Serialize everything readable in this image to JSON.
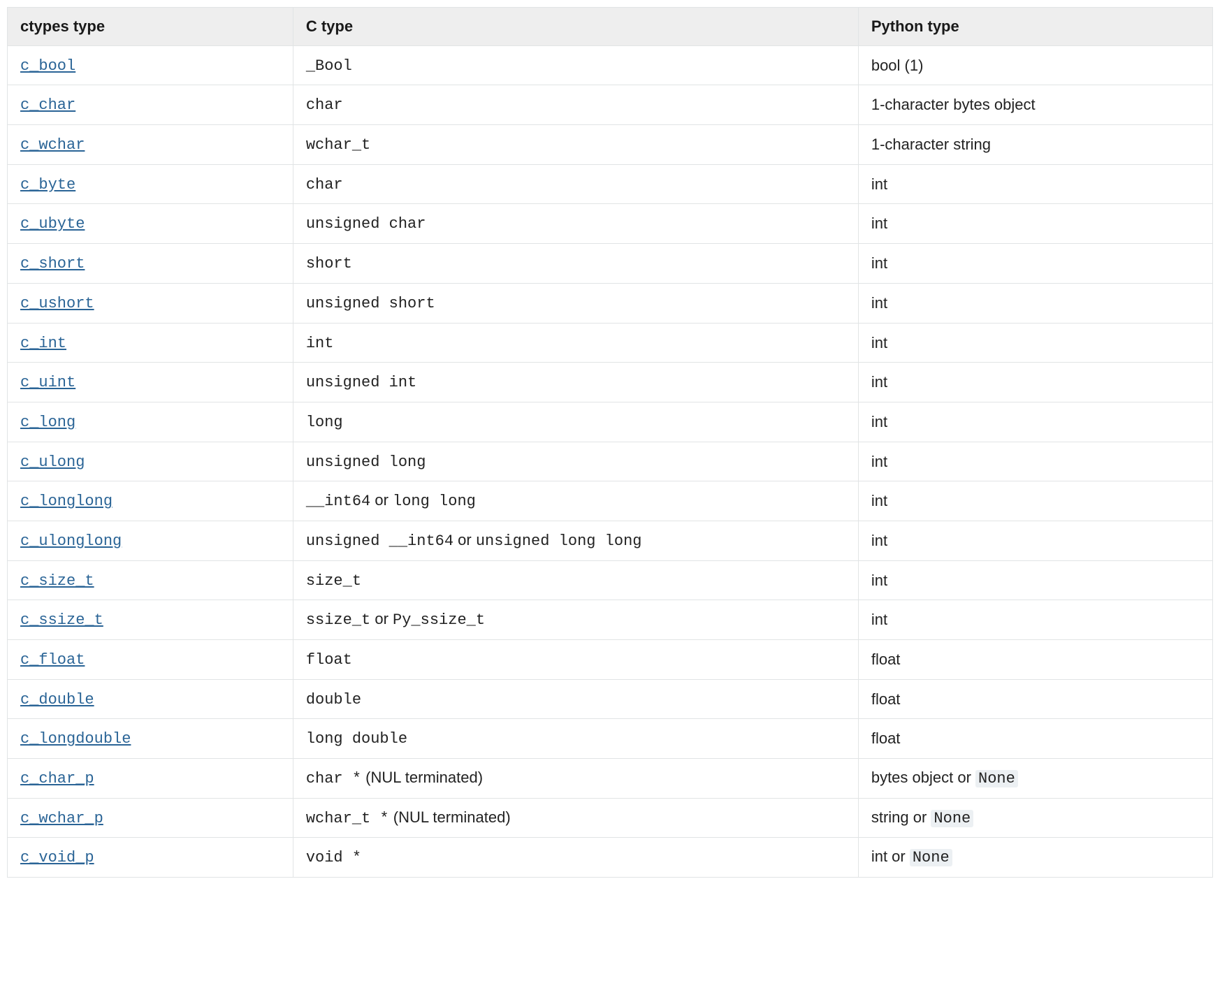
{
  "table": {
    "type": "table",
    "columns": [
      "ctypes type",
      "C type",
      "Python type"
    ],
    "column_widths_pct": [
      23.7,
      46.9,
      29.4
    ],
    "header_bg": "#eeeeee",
    "border_color": "#e1e4e5",
    "link_color": "#2a6496",
    "text_color": "#222222",
    "code_bg": "#ecf0f3",
    "mono_font": "Menlo, Monaco, Consolas, Courier New, monospace",
    "sans_font": "Lucida Grande, Helvetica Neue, Arial, sans-serif",
    "font_size_pt": 16,
    "rows": [
      {
        "ctypes": "c_bool",
        "c": [
          {
            "t": "code",
            "v": "_Bool"
          }
        ],
        "py": [
          {
            "t": "plain",
            "v": "bool (1)"
          }
        ]
      },
      {
        "ctypes": "c_char",
        "c": [
          {
            "t": "code",
            "v": "char"
          }
        ],
        "py": [
          {
            "t": "plain",
            "v": "1-character bytes object"
          }
        ]
      },
      {
        "ctypes": "c_wchar",
        "c": [
          {
            "t": "code",
            "v": "wchar_t"
          }
        ],
        "py": [
          {
            "t": "plain",
            "v": "1-character string"
          }
        ]
      },
      {
        "ctypes": "c_byte",
        "c": [
          {
            "t": "code",
            "v": "char"
          }
        ],
        "py": [
          {
            "t": "plain",
            "v": "int"
          }
        ]
      },
      {
        "ctypes": "c_ubyte",
        "c": [
          {
            "t": "code",
            "v": "unsigned char"
          }
        ],
        "py": [
          {
            "t": "plain",
            "v": "int"
          }
        ]
      },
      {
        "ctypes": "c_short",
        "c": [
          {
            "t": "code",
            "v": "short"
          }
        ],
        "py": [
          {
            "t": "plain",
            "v": "int"
          }
        ]
      },
      {
        "ctypes": "c_ushort",
        "c": [
          {
            "t": "code",
            "v": "unsigned short"
          }
        ],
        "py": [
          {
            "t": "plain",
            "v": "int"
          }
        ]
      },
      {
        "ctypes": "c_int",
        "c": [
          {
            "t": "code",
            "v": "int"
          }
        ],
        "py": [
          {
            "t": "plain",
            "v": "int"
          }
        ]
      },
      {
        "ctypes": "c_uint",
        "c": [
          {
            "t": "code",
            "v": "unsigned int"
          }
        ],
        "py": [
          {
            "t": "plain",
            "v": "int"
          }
        ]
      },
      {
        "ctypes": "c_long",
        "c": [
          {
            "t": "code",
            "v": "long"
          }
        ],
        "py": [
          {
            "t": "plain",
            "v": "int"
          }
        ]
      },
      {
        "ctypes": "c_ulong",
        "c": [
          {
            "t": "code",
            "v": "unsigned long"
          }
        ],
        "py": [
          {
            "t": "plain",
            "v": "int"
          }
        ]
      },
      {
        "ctypes": "c_longlong",
        "c": [
          {
            "t": "code",
            "v": "__int64"
          },
          {
            "t": "plain",
            "v": " or "
          },
          {
            "t": "code",
            "v": "long long"
          }
        ],
        "py": [
          {
            "t": "plain",
            "v": "int"
          }
        ]
      },
      {
        "ctypes": "c_ulonglong",
        "c": [
          {
            "t": "code",
            "v": "unsigned __int64"
          },
          {
            "t": "plain",
            "v": " or "
          },
          {
            "t": "code",
            "v": "unsigned long long"
          }
        ],
        "py": [
          {
            "t": "plain",
            "v": "int"
          }
        ]
      },
      {
        "ctypes": "c_size_t",
        "c": [
          {
            "t": "code",
            "v": "size_t"
          }
        ],
        "py": [
          {
            "t": "plain",
            "v": "int"
          }
        ]
      },
      {
        "ctypes": "c_ssize_t",
        "c": [
          {
            "t": "code",
            "v": "ssize_t"
          },
          {
            "t": "plain",
            "v": " or "
          },
          {
            "t": "code",
            "v": "Py_ssize_t"
          }
        ],
        "py": [
          {
            "t": "plain",
            "v": "int"
          }
        ]
      },
      {
        "ctypes": "c_float",
        "c": [
          {
            "t": "code",
            "v": "float"
          }
        ],
        "py": [
          {
            "t": "plain",
            "v": "float"
          }
        ]
      },
      {
        "ctypes": "c_double",
        "c": [
          {
            "t": "code",
            "v": "double"
          }
        ],
        "py": [
          {
            "t": "plain",
            "v": "float"
          }
        ]
      },
      {
        "ctypes": "c_longdouble",
        "c": [
          {
            "t": "code",
            "v": "long double"
          }
        ],
        "py": [
          {
            "t": "plain",
            "v": "float"
          }
        ]
      },
      {
        "ctypes": "c_char_p",
        "c": [
          {
            "t": "code",
            "v": "char *"
          },
          {
            "t": "plain",
            "v": " (NUL terminated)"
          }
        ],
        "py": [
          {
            "t": "plain",
            "v": "bytes object or "
          },
          {
            "t": "codebg",
            "v": "None"
          }
        ]
      },
      {
        "ctypes": "c_wchar_p",
        "c": [
          {
            "t": "code",
            "v": "wchar_t *"
          },
          {
            "t": "plain",
            "v": " (NUL terminated)"
          }
        ],
        "py": [
          {
            "t": "plain",
            "v": "string or "
          },
          {
            "t": "codebg",
            "v": "None"
          }
        ]
      },
      {
        "ctypes": "c_void_p",
        "c": [
          {
            "t": "code",
            "v": "void *"
          }
        ],
        "py": [
          {
            "t": "plain",
            "v": "int or "
          },
          {
            "t": "codebg",
            "v": "None"
          }
        ]
      }
    ]
  }
}
